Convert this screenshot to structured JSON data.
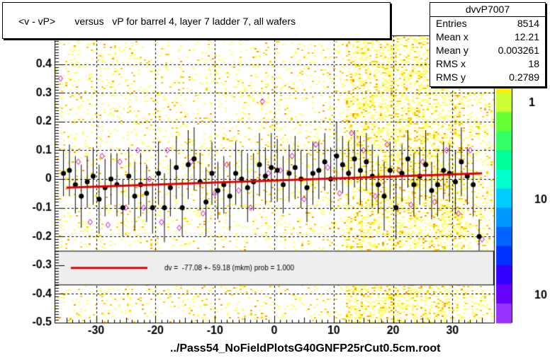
{
  "title": "<v - vP>       versus   vP for barrel 4, layer 7 ladder 7, all wafers",
  "footer_label": "../Pass54_NoFieldPlotsG40GNFP25rCut0.5cm.root",
  "stats": {
    "name": "dvvP7007",
    "rows": [
      {
        "key": "Entries",
        "value": "8514"
      },
      {
        "key": "Mean x",
        "value": "12.21"
      },
      {
        "key": "Mean y",
        "value": "0.003261"
      },
      {
        "key": "RMS x",
        "value": "18"
      },
      {
        "key": "RMS y",
        "value": "0.2789"
      }
    ]
  },
  "fit_legend": "dv =  -77.08 +- 59.18 (mkm) prob = 1.000",
  "colors": {
    "fit_line": "#e00000",
    "profile_marker": "#000000",
    "open_marker": "#cc00cc",
    "heat_light": "#ffff66",
    "heat_mid": "#ffcc00"
  },
  "chart_data": {
    "type": "scatter",
    "xlim": [
      -37,
      37
    ],
    "ylim": [
      -0.5,
      0.5
    ],
    "x_ticks": [
      "-30",
      "-20",
      "-10",
      "0",
      "10",
      "20",
      "30"
    ],
    "x_tick_values": [
      -30,
      -20,
      -10,
      0,
      10,
      20,
      30
    ],
    "y_ticks": [
      "-0.5",
      "-0.4",
      "-0.3",
      "-0.2",
      "-0.1",
      "0",
      "0.1",
      "0.2",
      "0.3",
      "0.4"
    ],
    "y_tick_values": [
      -0.5,
      -0.4,
      -0.3,
      -0.2,
      -0.1,
      0,
      0.1,
      0.2,
      0.3,
      0.4
    ],
    "color_scale_labels": [
      "1",
      "10",
      "10"
    ],
    "grid": true,
    "fit": {
      "x": [
        -35,
        35
      ],
      "y": [
        -0.03,
        0.02
      ]
    },
    "series": [
      {
        "marker": "filled-circle",
        "x": [
          -35.5,
          -34.5,
          -33.5,
          -32.5,
          -31.5,
          -30.5,
          -29.5,
          -28.5,
          -27.5,
          -26.5,
          -25.5,
          -24.5,
          -23.5,
          -22.5,
          -21.5,
          -20.5,
          -19.5,
          -18.5,
          -17.5,
          -16.5,
          -15.5,
          -14.5,
          -13.5,
          -12.5,
          -11.5,
          -10.5,
          -9.5,
          -8.5,
          -7.5,
          -6.5,
          -5.5,
          -4.5,
          -3.5,
          -2.5,
          -1.5,
          -0.5,
          0.5,
          1.5,
          2.5,
          3.5,
          4.5,
          5.5,
          6.5,
          7.5,
          8.5,
          9.5,
          10.5,
          11.5,
          12.5,
          13.5,
          14.5,
          15.5,
          16.5,
          17.5,
          18.5,
          19.5,
          20.5,
          21.5,
          22.5,
          23.5,
          24.5,
          25.5,
          26.5,
          27.5,
          28.5,
          29.5,
          30.5,
          31.5,
          32.5,
          33.5,
          34.5
        ],
        "y": [
          0.02,
          0.03,
          -0.02,
          -0.06,
          -0.01,
          0.01,
          -0.07,
          -0.03,
          0.0,
          -0.02,
          -0.1,
          0.01,
          -0.06,
          -0.02,
          -0.05,
          -0.1,
          0.02,
          -0.1,
          -0.03,
          0.04,
          -0.1,
          0.05,
          0.07,
          -0.01,
          -0.08,
          0.02,
          -0.04,
          -0.02,
          -0.06,
          0.02,
          0.0,
          -0.03,
          -0.01,
          0.05,
          0.01,
          0.04,
          0.03,
          -0.02,
          0.02,
          0.04,
          0.0,
          -0.03,
          0.02,
          0.03,
          0.06,
          0.0,
          0.08,
          0.05,
          0.02,
          0.07,
          0.03,
          0.06,
          0.01,
          -0.02,
          -0.06,
          0.03,
          -0.1,
          0.02,
          0.07,
          -0.02,
          0.01,
          0.05,
          -0.04,
          -0.02,
          0.03,
          0.02,
          -0.01,
          0.06,
          0.01,
          -0.02,
          -0.2
        ],
        "err": [
          0.08,
          0.09,
          0.1,
          0.11,
          0.09,
          0.1,
          0.12,
          0.1,
          0.09,
          0.11,
          0.1,
          0.1,
          0.12,
          0.11,
          0.1,
          0.09,
          0.11,
          0.12,
          0.1,
          0.11,
          0.1,
          0.12,
          0.11,
          0.1,
          0.12,
          0.11,
          0.1,
          0.1,
          0.12,
          0.11,
          0.1,
          0.12,
          0.1,
          0.11,
          0.1,
          0.12,
          0.11,
          0.1,
          0.1,
          0.11,
          0.1,
          0.12,
          0.11,
          0.1,
          0.1,
          0.11,
          0.12,
          0.1,
          0.11,
          0.1,
          0.12,
          0.1,
          0.11,
          0.1,
          0.12,
          0.1,
          0.11,
          0.1,
          0.1,
          0.11,
          0.1,
          0.12,
          0.1,
          0.11,
          0.1,
          0.1,
          0.11,
          0.12,
          0.1,
          0.11,
          0.06
        ]
      },
      {
        "marker": "open-diamond",
        "x": [
          -36,
          -33,
          -31,
          -29,
          -28,
          -26,
          -25,
          -23,
          -22,
          -21,
          -19,
          -18,
          -16,
          -14,
          -12,
          -10,
          -8,
          -6,
          -4,
          -2,
          -1,
          1,
          3,
          5,
          7,
          9,
          11,
          13,
          15,
          17,
          19,
          21,
          23,
          25,
          27,
          29,
          31,
          33,
          35
        ],
        "y": [
          0.35,
          0.06,
          -0.15,
          0.08,
          -0.16,
          0.06,
          -0.1,
          0.1,
          -0.1,
          0.0,
          -0.15,
          0.1,
          -0.17,
          0.06,
          -0.12,
          -0.05,
          0.05,
          -0.04,
          -0.1,
          0.27,
          0.02,
          0.03,
          0.08,
          -0.07,
          0.12,
          0.04,
          -0.05,
          0.16,
          0.1,
          -0.06,
          0.12,
          0.03,
          -0.09,
          0.06,
          -0.08,
          0.1,
          -0.12,
          0.1,
          -0.21
        ]
      }
    ]
  }
}
